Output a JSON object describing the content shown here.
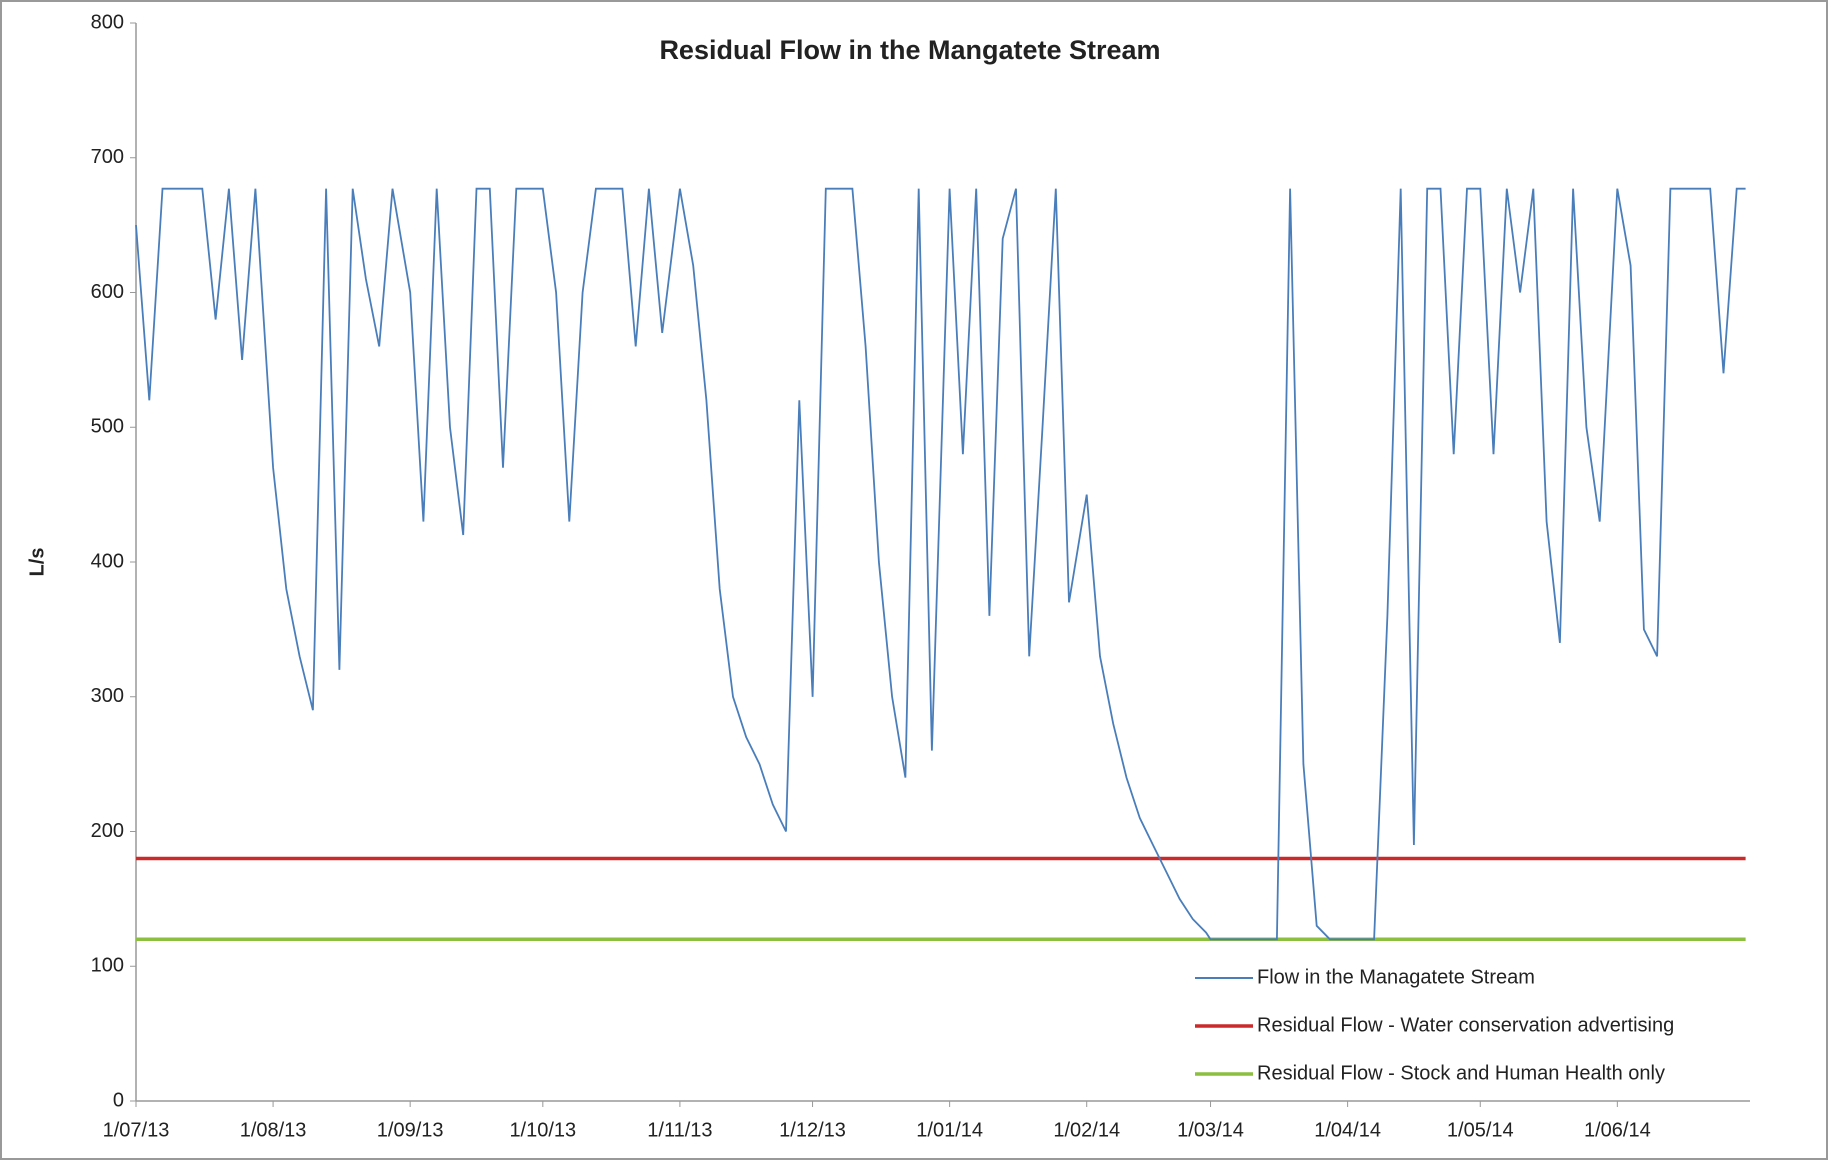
{
  "chart_data": {
    "type": "line",
    "title": "Residual Flow in the Mangatete Stream",
    "y_label": "L/s",
    "ylim": [
      0,
      800
    ],
    "yticks": [
      0,
      100,
      200,
      300,
      400,
      500,
      600,
      700,
      800
    ],
    "xlim": [
      "1/07/13",
      "1/07/14"
    ],
    "xticks": [
      "1/07/13",
      "1/08/13",
      "1/09/13",
      "1/10/13",
      "1/11/13",
      "1/12/13",
      "1/01/14",
      "1/02/14",
      "1/03/14",
      "1/04/14",
      "1/05/14",
      "1/06/14"
    ],
    "grid": false,
    "legend": "lower right",
    "series": [
      {
        "name": "Flow in the Managatete Stream",
        "color": "#4a7ebb",
        "x": [
          "1/07/13",
          "4/07/13",
          "7/07/13",
          "10/07/13",
          "13/07/13",
          "16/07/13",
          "19/07/13",
          "22/07/13",
          "25/07/13",
          "28/07/13",
          "1/08/13",
          "4/08/13",
          "7/08/13",
          "10/08/13",
          "13/08/13",
          "16/08/13",
          "19/08/13",
          "22/08/13",
          "25/08/13",
          "28/08/13",
          "1/09/13",
          "4/09/13",
          "7/09/13",
          "10/09/13",
          "13/09/13",
          "16/09/13",
          "19/09/13",
          "22/09/13",
          "25/09/13",
          "28/09/13",
          "1/10/13",
          "4/10/13",
          "7/10/13",
          "10/10/13",
          "13/10/13",
          "16/10/13",
          "19/10/13",
          "22/10/13",
          "25/10/13",
          "28/10/13",
          "1/11/13",
          "4/11/13",
          "7/11/13",
          "10/11/13",
          "13/11/13",
          "16/11/13",
          "19/11/13",
          "22/11/13",
          "25/11/13",
          "28/11/13",
          "1/12/13",
          "4/12/13",
          "7/12/13",
          "10/12/13",
          "13/12/13",
          "16/12/13",
          "19/12/13",
          "22/12/13",
          "25/12/13",
          "28/12/13",
          "1/01/14",
          "4/01/14",
          "7/01/14",
          "10/01/14",
          "13/01/14",
          "16/01/14",
          "19/01/14",
          "22/01/14",
          "25/01/14",
          "28/01/14",
          "1/02/14",
          "4/02/14",
          "7/02/14",
          "10/02/14",
          "13/02/14",
          "16/02/14",
          "19/02/14",
          "22/02/14",
          "25/02/14",
          "28/02/14",
          "1/03/14",
          "4/03/14",
          "7/03/14",
          "10/03/14",
          "13/03/14",
          "16/03/14",
          "19/03/14",
          "22/03/14",
          "25/03/14",
          "28/03/14",
          "1/04/14",
          "4/04/14",
          "7/04/14",
          "10/04/14",
          "13/04/14",
          "16/04/14",
          "19/04/14",
          "22/04/14",
          "25/04/14",
          "28/04/14",
          "1/05/14",
          "4/05/14",
          "7/05/14",
          "10/05/14",
          "13/05/14",
          "16/05/14",
          "19/05/14",
          "22/05/14",
          "25/05/14",
          "28/05/14",
          "1/06/14",
          "4/06/14",
          "7/06/14",
          "10/06/14",
          "13/06/14",
          "16/06/14",
          "19/06/14",
          "22/06/14",
          "25/06/14",
          "28/06/14",
          "30/06/14"
        ],
        "values": [
          650,
          520,
          677,
          677,
          677,
          677,
          580,
          677,
          550,
          677,
          470,
          380,
          330,
          290,
          677,
          320,
          677,
          610,
          560,
          677,
          600,
          430,
          677,
          500,
          420,
          677,
          677,
          470,
          677,
          677,
          677,
          600,
          430,
          600,
          677,
          677,
          677,
          560,
          677,
          570,
          677,
          620,
          520,
          380,
          300,
          270,
          250,
          220,
          200,
          520,
          300,
          677,
          677,
          677,
          560,
          400,
          300,
          240,
          677,
          260,
          677,
          480,
          677,
          360,
          640,
          677,
          330,
          500,
          677,
          370,
          450,
          330,
          280,
          240,
          210,
          190,
          170,
          150,
          135,
          125,
          120,
          120,
          120,
          120,
          120,
          120,
          677,
          250,
          130,
          120,
          120,
          120,
          120,
          360,
          677,
          190,
          677,
          677,
          480,
          677,
          677,
          480,
          677,
          600,
          677,
          430,
          340,
          677,
          500,
          430,
          677,
          620,
          350,
          330,
          677,
          677,
          677,
          677,
          540,
          677,
          677
        ]
      },
      {
        "name": "Residual Flow - Water conservation advertising",
        "color": "#cc2a2a",
        "x": [
          "1/07/13",
          "30/06/14"
        ],
        "values": [
          180,
          180
        ]
      },
      {
        "name": "Residual Flow - Stock and Human Health only",
        "color": "#8cbf3f",
        "x": [
          "1/07/13",
          "30/06/14"
        ],
        "values": [
          120,
          120
        ]
      }
    ]
  }
}
